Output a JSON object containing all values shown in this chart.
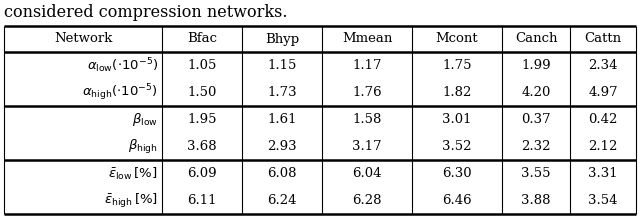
{
  "caption": "considered compression networks.",
  "headers": [
    "Network",
    "Bfac",
    "Bhyp",
    "Mmean",
    "Mcont",
    "Canch",
    "Cattn"
  ],
  "rows": [
    {
      "label_render": "alpha_low_exp",
      "values": [
        "1.05",
        "1.15",
        "1.17",
        "1.75",
        "1.99",
        "2.34"
      ]
    },
    {
      "label_render": "alpha_high_exp",
      "values": [
        "1.50",
        "1.73",
        "1.76",
        "1.82",
        "4.20",
        "4.97"
      ]
    },
    {
      "label_render": "beta_low",
      "values": [
        "1.95",
        "1.61",
        "1.58",
        "3.01",
        "0.37",
        "0.42"
      ]
    },
    {
      "label_render": "beta_high",
      "values": [
        "3.68",
        "2.93",
        "3.17",
        "3.52",
        "2.32",
        "2.12"
      ]
    },
    {
      "label_render": "eps_low",
      "values": [
        "6.09",
        "6.08",
        "6.04",
        "6.30",
        "3.55",
        "3.31"
      ]
    },
    {
      "label_render": "eps_high",
      "values": [
        "6.11",
        "6.24",
        "6.28",
        "6.46",
        "3.88",
        "3.54"
      ]
    }
  ],
  "figsize": [
    6.4,
    2.22
  ],
  "dpi": 100,
  "background": "#ffffff",
  "font_size": 9.5,
  "caption_font_size": 11.5
}
